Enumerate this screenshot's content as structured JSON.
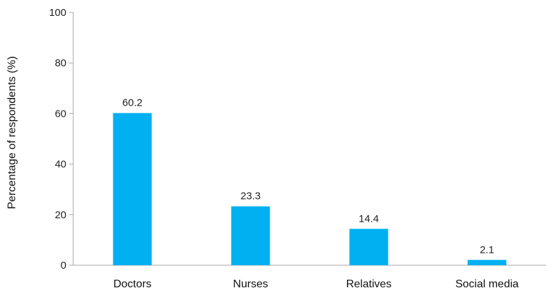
{
  "chart_data": {
    "type": "bar",
    "categories": [
      "Doctors",
      "Nurses",
      "Relatives",
      "Social media"
    ],
    "values": [
      60.2,
      23.3,
      14.4,
      2.1
    ],
    "data_labels": [
      "60.2",
      "23.3",
      "14.4",
      "2.1"
    ],
    "title": "",
    "xlabel": "",
    "ylabel": "Percentage of respondents (%)",
    "ylim": [
      0,
      100
    ],
    "yticks": [
      0,
      20,
      40,
      60,
      80,
      100
    ],
    "ytick_labels": [
      "0",
      "20",
      "40",
      "60",
      "80",
      "100"
    ],
    "grid": false,
    "legend": "none",
    "bar_color": "#00b0f0",
    "axis_color": "#a6a6a6"
  }
}
